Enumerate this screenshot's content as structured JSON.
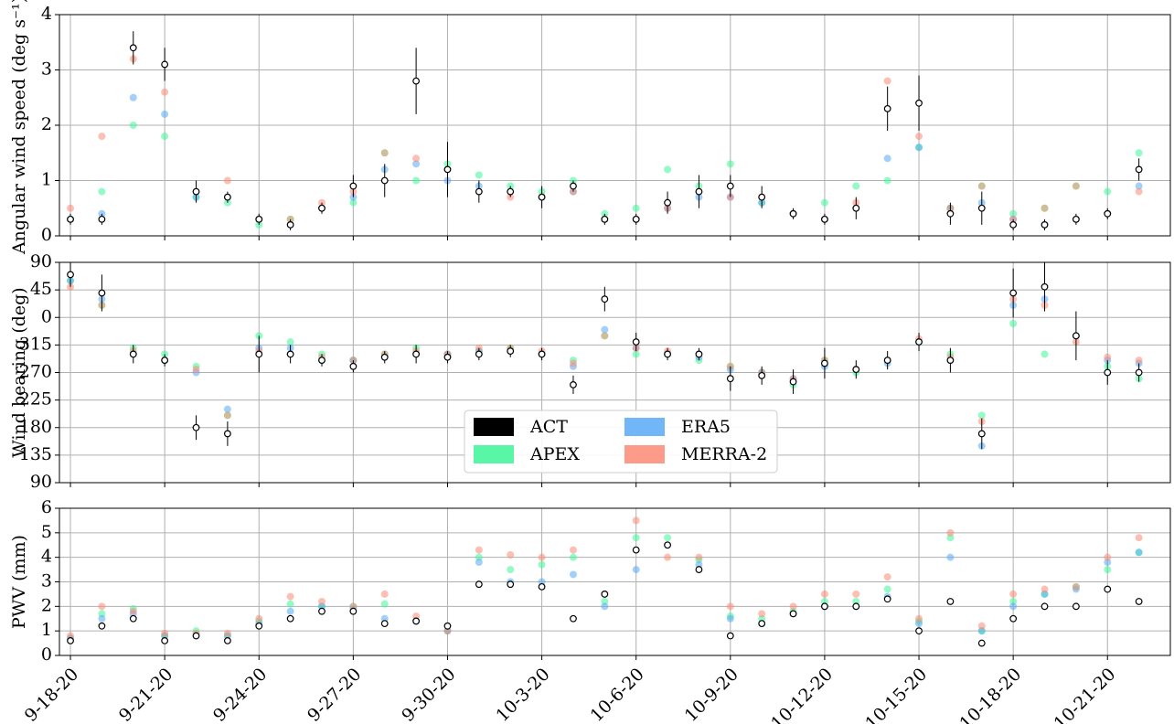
{
  "shared_x": {
    "x": [
      0,
      1,
      2,
      3,
      4,
      5,
      6,
      7,
      8,
      9,
      10,
      11,
      12,
      13,
      14,
      15,
      16,
      17,
      18,
      19,
      20,
      21,
      22,
      23,
      24,
      25,
      26,
      27,
      28,
      29,
      30,
      31,
      32,
      33,
      34
    ],
    "xlim": [
      -0.35,
      35
    ],
    "xticks": [
      {
        "value": 0,
        "label": "9-18-20"
      },
      {
        "value": 3,
        "label": "9-21-20"
      },
      {
        "value": 6,
        "label": "9-24-20"
      },
      {
        "value": 9,
        "label": "9-27-20"
      },
      {
        "value": 12,
        "label": "9-30-20"
      },
      {
        "value": 15,
        "label": "10-3-20"
      },
      {
        "value": 18,
        "label": "10-6-20"
      },
      {
        "value": 21,
        "label": "10-9-20"
      },
      {
        "value": 24,
        "label": "10-12-20"
      },
      {
        "value": 27,
        "label": "10-15-20"
      },
      {
        "value": 30,
        "label": "10-18-20"
      },
      {
        "value": 33,
        "label": "10-21-20"
      }
    ]
  },
  "chart_data": [
    {
      "type": "scatter",
      "ylabel": "Angular wind speed (deg s⁻¹)",
      "ylim": [
        0,
        4
      ],
      "yticks": [
        0,
        1,
        2,
        3,
        4
      ],
      "grid": true,
      "series": [
        {
          "name": "APEX",
          "color": "#3df598",
          "values": [
            0.3,
            0.8,
            2.0,
            1.8,
            0.7,
            0.6,
            0.2,
            0.3,
            0.5,
            0.6,
            1.5,
            1.0,
            1.3,
            1.1,
            0.9,
            0.8,
            1.0,
            0.4,
            0.5,
            1.2,
            0.9,
            1.3,
            0.6,
            0.4,
            0.6,
            0.9,
            1.0,
            1.6,
            0.5,
            0.9,
            0.4,
            0.5,
            0.9,
            0.8,
            1.5
          ]
        },
        {
          "name": "ERA5",
          "color": "#58aaf7",
          "values": [
            0.3,
            0.4,
            2.5,
            2.2,
            0.7,
            0.7,
            0.3,
            0.2,
            0.5,
            0.7,
            1.2,
            1.3,
            1.0,
            0.9,
            0.8,
            0.7,
            0.8,
            0.3,
            0.3,
            0.5,
            0.7,
            0.7,
            0.6,
            0.4,
            0.3,
            0.5,
            1.4,
            1.6,
            0.5,
            0.6,
            0.3,
            0.2,
            0.3,
            0.4,
            0.9
          ]
        },
        {
          "name": "MERRA-2",
          "color": "#fc8a75",
          "values": [
            0.5,
            1.8,
            3.2,
            2.6,
            0.8,
            1.0,
            0.3,
            0.3,
            0.6,
            0.8,
            1.5,
            1.4,
            1.2,
            0.8,
            0.7,
            0.7,
            0.8,
            0.3,
            0.3,
            0.5,
            0.8,
            0.7,
            0.7,
            0.4,
            0.3,
            0.6,
            2.8,
            1.8,
            0.5,
            0.9,
            0.3,
            0.5,
            0.9,
            0.4,
            0.8
          ]
        },
        {
          "name": "ACT",
          "color": "#000000",
          "open": true,
          "values": [
            0.3,
            0.3,
            3.4,
            3.1,
            0.8,
            0.7,
            0.3,
            0.2,
            0.5,
            0.9,
            1.0,
            2.8,
            1.2,
            0.8,
            0.8,
            0.7,
            0.9,
            0.3,
            0.3,
            0.6,
            0.8,
            0.9,
            0.7,
            0.4,
            0.3,
            0.5,
            2.3,
            2.4,
            0.4,
            0.5,
            0.2,
            0.2,
            0.3,
            0.4,
            1.2
          ],
          "errors": [
            0.1,
            0.1,
            0.3,
            0.3,
            0.2,
            0.1,
            0.1,
            0.1,
            0.1,
            0.2,
            0.3,
            0.6,
            0.5,
            0.2,
            0.1,
            0.2,
            0.1,
            0.1,
            0.1,
            0.2,
            0.3,
            0.2,
            0.2,
            0.1,
            0.1,
            0.2,
            0.4,
            0.5,
            0.2,
            0.3,
            0.1,
            0.1,
            0.1,
            0.1,
            0.2
          ]
        }
      ]
    },
    {
      "type": "scatter",
      "ylabel": "Wind bearing (deg)",
      "ylim": [
        90,
        450
      ],
      "yticks": [
        90,
        135,
        180,
        225,
        270,
        315,
        {
          "value": 360,
          "label": "0"
        },
        {
          "value": 405,
          "label": "45"
        },
        {
          "value": 450,
          "label": "90"
        }
      ],
      "grid": true,
      "legend": "lower center",
      "series": [
        {
          "name": "APEX",
          "color": "#3df598",
          "values": [
            420,
            380,
            310,
            300,
            280,
            200,
            330,
            320,
            300,
            290,
            300,
            310,
            300,
            305,
            310,
            300,
            290,
            330,
            300,
            300,
            290,
            280,
            270,
            250,
            290,
            270,
            290,
            320,
            300,
            200,
            350,
            300,
            330,
            280,
            260
          ]
        },
        {
          "name": "ERA5",
          "color": "#58aaf7",
          "values": [
            420,
            390,
            300,
            290,
            270,
            210,
            310,
            310,
            290,
            290,
            295,
            300,
            300,
            305,
            305,
            300,
            280,
            340,
            310,
            300,
            295,
            275,
            270,
            260,
            280,
            275,
            285,
            320,
            290,
            150,
            380,
            390,
            330,
            290,
            285
          ]
        },
        {
          "name": "MERRA-2",
          "color": "#fc8a75",
          "values": [
            410,
            380,
            305,
            290,
            275,
            200,
            305,
            300,
            295,
            290,
            300,
            305,
            300,
            310,
            310,
            305,
            285,
            330,
            310,
            305,
            300,
            280,
            270,
            260,
            290,
            275,
            290,
            325,
            295,
            190,
            390,
            380,
            320,
            295,
            290
          ]
        },
        {
          "name": "ACT",
          "color": "#000000",
          "open": true,
          "values": [
            430,
            400,
            300,
            290,
            180,
            170,
            300,
            300,
            290,
            280,
            295,
            300,
            295,
            300,
            305,
            300,
            250,
            390,
            320,
            300,
            300,
            260,
            265,
            255,
            285,
            275,
            290,
            320,
            290,
            170,
            400,
            410,
            330,
            270,
            270
          ],
          "errors": [
            20,
            30,
            15,
            10,
            20,
            20,
            30,
            15,
            10,
            10,
            10,
            15,
            10,
            10,
            10,
            10,
            15,
            20,
            15,
            10,
            10,
            20,
            15,
            20,
            25,
            15,
            15,
            15,
            20,
            25,
            40,
            40,
            40,
            20,
            15
          ]
        }
      ]
    },
    {
      "type": "scatter",
      "ylabel": "PWV (mm)",
      "ylim": [
        0,
        6
      ],
      "yticks": [
        0,
        1,
        2,
        3,
        4,
        5,
        6
      ],
      "grid": true,
      "series": [
        {
          "name": "APEX",
          "color": "#3df598",
          "values": [
            0.7,
            1.7,
            1.9,
            0.8,
            1.0,
            0.8,
            1.4,
            2.1,
            2.0,
            2.0,
            2.1,
            1.4,
            1.0,
            4.0,
            3.5,
            3.7,
            4.0,
            2.2,
            4.8,
            4.8,
            3.9,
            1.6,
            1.5,
            1.8,
            2.2,
            2.2,
            2.7,
            1.4,
            4.8,
            1.0,
            2.2,
            2.5,
            2.8,
            3.5,
            4.2
          ]
        },
        {
          "name": "ERA5",
          "color": "#58aaf7",
          "values": [
            0.7,
            1.5,
            1.7,
            0.8,
            0.8,
            0.8,
            1.3,
            1.8,
            2.0,
            1.9,
            1.5,
            1.4,
            1.0,
            3.8,
            3.0,
            3.0,
            3.3,
            2.0,
            3.5,
            4.5,
            3.7,
            1.5,
            1.3,
            1.7,
            2.0,
            2.0,
            2.4,
            1.3,
            4.0,
            1.0,
            2.0,
            2.5,
            2.7,
            3.8,
            4.2
          ]
        },
        {
          "name": "MERRA-2",
          "color": "#fc8a75",
          "values": [
            0.8,
            2.0,
            1.8,
            0.9,
            0.9,
            0.9,
            1.5,
            2.4,
            2.2,
            2.0,
            2.5,
            1.6,
            1.0,
            4.3,
            4.1,
            4.0,
            4.3,
            2.5,
            5.5,
            4.0,
            4.0,
            2.0,
            1.7,
            2.0,
            2.5,
            2.5,
            3.2,
            1.5,
            5.0,
            1.2,
            2.5,
            2.7,
            2.8,
            4.0,
            4.8
          ]
        },
        {
          "name": "ACT",
          "color": "#000000",
          "open": true,
          "values": [
            0.6,
            1.2,
            1.5,
            0.6,
            0.8,
            0.6,
            1.2,
            1.5,
            1.8,
            1.8,
            1.3,
            1.4,
            1.2,
            2.9,
            2.9,
            2.8,
            1.5,
            2.5,
            4.3,
            4.5,
            3.5,
            0.8,
            1.3,
            1.7,
            2.0,
            2.0,
            2.3,
            1.0,
            2.2,
            0.5,
            1.5,
            2.0,
            2.0,
            2.7,
            2.2
          ]
        }
      ]
    }
  ]
}
